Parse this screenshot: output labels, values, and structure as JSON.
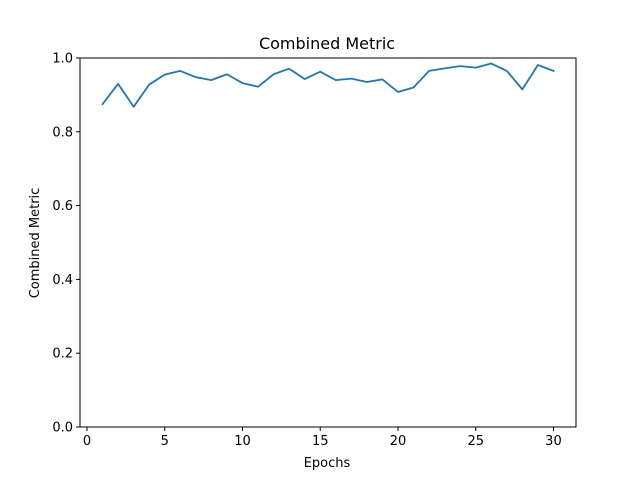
{
  "chart_data": {
    "type": "line",
    "title": "Combined Metric",
    "xlabel": "Epochs",
    "ylabel": "Combined Metric",
    "xlim": [
      -0.45,
      31.45
    ],
    "ylim": [
      0.0,
      1.0
    ],
    "xticks": [
      0,
      5,
      10,
      15,
      20,
      25,
      30
    ],
    "yticks": [
      0.0,
      0.2,
      0.4,
      0.6,
      0.8,
      1.0
    ],
    "xtick_labels": [
      "0",
      "5",
      "10",
      "15",
      "20",
      "25",
      "30"
    ],
    "ytick_labels": [
      "0.0",
      "0.2",
      "0.4",
      "0.6",
      "0.8",
      "1.0"
    ],
    "grid": false,
    "legend": "none",
    "series": [
      {
        "color": "#1f77b4",
        "x": [
          1,
          2,
          3,
          4,
          5,
          6,
          7,
          8,
          9,
          10,
          11,
          12,
          13,
          14,
          15,
          16,
          17,
          18,
          19,
          20,
          21,
          22,
          23,
          24,
          25,
          26,
          27,
          28,
          29,
          30
        ],
        "values": [
          0.875,
          0.93,
          0.868,
          0.928,
          0.955,
          0.965,
          0.948,
          0.94,
          0.956,
          0.932,
          0.922,
          0.956,
          0.971,
          0.943,
          0.963,
          0.94,
          0.944,
          0.935,
          0.942,
          0.908,
          0.92,
          0.965,
          0.972,
          0.978,
          0.974,
          0.985,
          0.965,
          0.915,
          0.981,
          0.965
        ]
      }
    ]
  }
}
